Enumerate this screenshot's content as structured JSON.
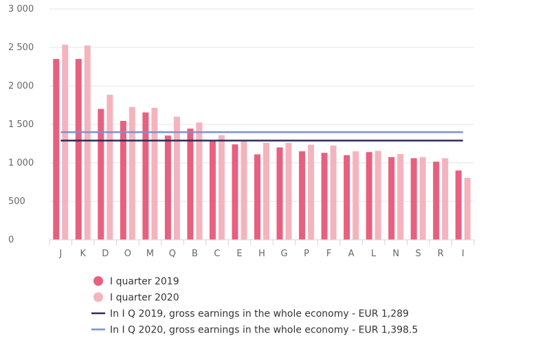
{
  "chart_data": {
    "type": "bar",
    "categories": [
      "J",
      "K",
      "D",
      "O",
      "M",
      "Q",
      "B",
      "C",
      "E",
      "H",
      "G",
      "P",
      "F",
      "A",
      "L",
      "N",
      "S",
      "R",
      "I"
    ],
    "series": [
      {
        "name": "I quarter 2019",
        "color": "#e8607f",
        "values": [
          2350,
          2350,
          1700,
          1545,
          1655,
          1355,
          1445,
          1295,
          1240,
          1110,
          1200,
          1150,
          1130,
          1100,
          1140,
          1075,
          1060,
          1015,
          900
        ]
      },
      {
        "name": "I quarter 2020",
        "color": "#f4b4bd",
        "values": [
          2535,
          2525,
          1885,
          1725,
          1715,
          1600,
          1525,
          1360,
          1290,
          1260,
          1260,
          1235,
          1225,
          1150,
          1155,
          1115,
          1075,
          1060,
          805
        ]
      }
    ],
    "lines": [
      {
        "name": "In I Q 2019, gross earnings in the whole economy - EUR 1,289",
        "value": 1289,
        "color": "#2b2a5c"
      },
      {
        "name": "In I Q 2020, gross earnings in the whole economy - EUR 1,398.5",
        "value": 1398.5,
        "color": "#7c90cf"
      }
    ],
    "y_ticks": [
      "0",
      "500",
      "1 000",
      "1 500",
      "2 000",
      "2 500",
      "3 000"
    ],
    "ylim": [
      0,
      3000
    ],
    "grid": true,
    "legend_position": "bottom"
  }
}
